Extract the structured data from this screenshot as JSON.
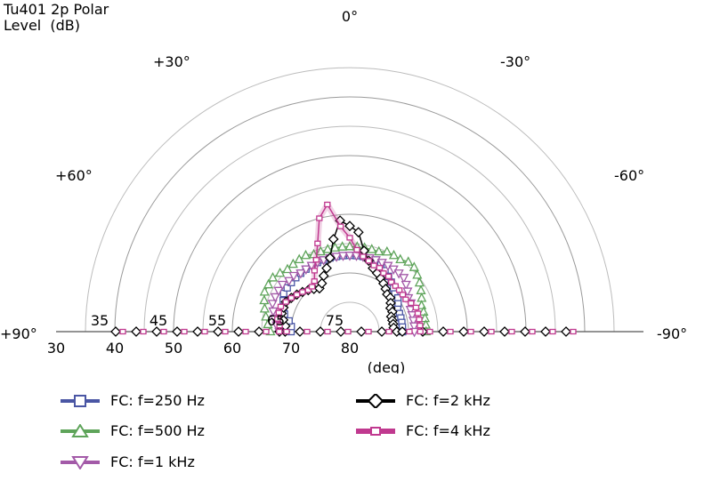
{
  "title": {
    "line1": "Tu401 2p Polar",
    "line2": "Level  (dB)"
  },
  "chart_data": {
    "type": "polar-half",
    "angle_labels": [
      {
        "deg": 90,
        "text": "+90°"
      },
      {
        "deg": 60,
        "text": "+60°"
      },
      {
        "deg": 30,
        "text": "+30°"
      },
      {
        "deg": 0,
        "text": "0°"
      },
      {
        "deg": -30,
        "text": "-30°"
      },
      {
        "deg": -60,
        "text": "-60°"
      },
      {
        "deg": -90,
        "text": "-90°"
      }
    ],
    "radial_range_db": [
      30,
      80
    ],
    "radial_ticks_bottom": [
      80,
      70,
      60,
      50,
      40,
      30
    ],
    "radial_ticks_inner": [
      75,
      65,
      55,
      45,
      35
    ],
    "axis_unit_label": "(deg)",
    "grid": true,
    "angle_step_deg": 10,
    "series": [
      {
        "name": "FC: f=250 Hz",
        "color": "#4a56a4",
        "marker": "square",
        "angles": [
          90,
          85,
          80,
          75,
          70,
          65,
          60,
          55,
          50,
          45,
          40,
          35,
          30,
          25,
          20,
          15,
          10,
          5,
          0,
          -5,
          -10,
          -15,
          -20,
          -25,
          -30,
          -35,
          -40,
          -45,
          -50,
          -55,
          -60,
          -65,
          -70,
          -75,
          -80,
          -85,
          -90
        ],
        "values": [
          70,
          70,
          69.5,
          68.5,
          68,
          67.5,
          67,
          67,
          67,
          67,
          67,
          67,
          67,
          67,
          67,
          67,
          67,
          67,
          67,
          67,
          67,
          67,
          67,
          67.5,
          68,
          68.5,
          69,
          69.5,
          70,
          70,
          70.5,
          71,
          71,
          71,
          71,
          71,
          71
        ]
      },
      {
        "name": "FC: f=500 Hz",
        "color": "#5ea45a",
        "marker": "triangle-up",
        "angles": [
          90,
          85,
          80,
          75,
          70,
          65,
          60,
          55,
          50,
          45,
          40,
          35,
          30,
          25,
          20,
          15,
          10,
          5,
          0,
          -5,
          -10,
          -15,
          -20,
          -25,
          -30,
          -35,
          -40,
          -45,
          -50,
          -55,
          -60,
          -65,
          -70,
          -75,
          -80,
          -85,
          -90
        ],
        "values": [
          66.5,
          66,
          65.5,
          65,
          64.5,
          64,
          64,
          64,
          64.5,
          65,
          65,
          65,
          65,
          65.5,
          65.5,
          65.5,
          65.5,
          65.5,
          65.5,
          65.5,
          65.5,
          65.5,
          65.5,
          65,
          65,
          65,
          64.5,
          64.5,
          65,
          65.5,
          66,
          66.5,
          67,
          67,
          67,
          67,
          67
        ]
      },
      {
        "name": "FC: f=1 kHz",
        "color": "#a35aa8",
        "marker": "triangle-down",
        "angles": [
          90,
          85,
          80,
          75,
          70,
          65,
          60,
          55,
          50,
          45,
          40,
          35,
          30,
          25,
          20,
          15,
          10,
          5,
          0,
          -5,
          -10,
          -15,
          -20,
          -25,
          -30,
          -35,
          -40,
          -45,
          -50,
          -55,
          -60,
          -65,
          -70,
          -75,
          -80,
          -85,
          -90
        ],
        "values": [
          68,
          67.5,
          67,
          66.5,
          66,
          66,
          66,
          66,
          66.5,
          66.5,
          67,
          67,
          67,
          67,
          67,
          67,
          67,
          67,
          67,
          67,
          67,
          67,
          67,
          67,
          67,
          67,
          67,
          67,
          67.5,
          68,
          68.5,
          68.5,
          69,
          69,
          69,
          69,
          69
        ]
      },
      {
        "name": "FC: f=2 kHz",
        "color": "#000000",
        "marker": "diamond",
        "angles": [
          90,
          85,
          80,
          75,
          70,
          65,
          60,
          55,
          50,
          45,
          40,
          35,
          30,
          25,
          20,
          15,
          10,
          5,
          0,
          -5,
          -10,
          -15,
          -20,
          -25,
          -30,
          -35,
          -40,
          -45,
          -50,
          -55,
          -60,
          -65,
          -70,
          -75,
          -80,
          -85,
          -90
        ],
        "values": [
          69,
          69,
          68.5,
          68,
          68,
          68,
          68.5,
          69,
          69.5,
          70,
          70.5,
          71,
          70.5,
          69.5,
          68.5,
          67,
          64,
          61,
          62,
          63,
          66,
          67.5,
          68.5,
          69,
          69.5,
          70,
          70.5,
          71,
          71,
          71.5,
          72,
          72,
          72.5,
          72.5,
          72.5,
          72.5,
          72
        ]
      },
      {
        "name": "FC: f=4 kHz",
        "color": "#c0398f",
        "marker": "rect-small",
        "angles": [
          90,
          85,
          80,
          75,
          70,
          65,
          60,
          55,
          50,
          45,
          40,
          35,
          30,
          25,
          20,
          15,
          10,
          5,
          0,
          -5,
          -10,
          -15,
          -20,
          -25,
          -30,
          -35,
          -40,
          -45,
          -50,
          -55,
          -60,
          -65,
          -70,
          -75,
          -80,
          -85,
          -90
        ],
        "values": [
          68,
          68,
          67.5,
          67.5,
          67.5,
          68,
          68.5,
          69,
          69.5,
          70,
          70,
          69.5,
          68,
          66.5,
          64,
          60,
          58,
          62,
          64,
          66,
          67,
          67.5,
          68,
          68,
          68.5,
          68.5,
          69,
          69,
          69,
          69,
          69,
          68.5,
          68,
          68,
          68,
          68,
          68
        ]
      }
    ]
  },
  "legend": {
    "items": [
      {
        "label": "FC: f=250 Hz"
      },
      {
        "label": "FC: f=500 Hz"
      },
      {
        "label": "FC: f=1 kHz"
      },
      {
        "label": "FC: f=2 kHz"
      },
      {
        "label": "FC: f=4 kHz"
      }
    ]
  }
}
